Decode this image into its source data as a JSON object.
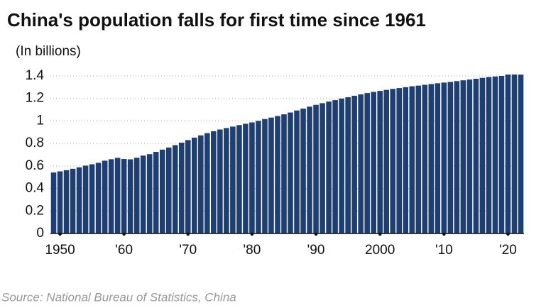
{
  "chart_data": {
    "type": "bar",
    "title": "China's population falls for first time since 1961",
    "subtitle": "(In billions)",
    "source": "Source: National Bureau of Statistics, China",
    "color": "#1f3e72",
    "grid": true,
    "x": [
      1949,
      1950,
      1951,
      1952,
      1953,
      1954,
      1955,
      1956,
      1957,
      1958,
      1959,
      1960,
      1961,
      1962,
      1963,
      1964,
      1965,
      1966,
      1967,
      1968,
      1969,
      1970,
      1971,
      1972,
      1973,
      1974,
      1975,
      1976,
      1977,
      1978,
      1979,
      1980,
      1981,
      1982,
      1983,
      1984,
      1985,
      1986,
      1987,
      1988,
      1989,
      1990,
      1991,
      1992,
      1993,
      1994,
      1995,
      1996,
      1997,
      1998,
      1999,
      2000,
      2001,
      2002,
      2003,
      2004,
      2005,
      2006,
      2007,
      2008,
      2009,
      2010,
      2011,
      2012,
      2013,
      2014,
      2015,
      2016,
      2017,
      2018,
      2019,
      2020,
      2021,
      2022
    ],
    "values": [
      0.542,
      0.552,
      0.563,
      0.575,
      0.588,
      0.603,
      0.615,
      0.628,
      0.647,
      0.66,
      0.672,
      0.662,
      0.659,
      0.673,
      0.692,
      0.705,
      0.725,
      0.745,
      0.764,
      0.785,
      0.807,
      0.83,
      0.852,
      0.872,
      0.892,
      0.909,
      0.924,
      0.937,
      0.95,
      0.963,
      0.975,
      0.987,
      1.001,
      1.017,
      1.03,
      1.044,
      1.059,
      1.075,
      1.093,
      1.11,
      1.127,
      1.143,
      1.158,
      1.172,
      1.185,
      1.199,
      1.211,
      1.224,
      1.236,
      1.248,
      1.258,
      1.267,
      1.276,
      1.285,
      1.292,
      1.3,
      1.308,
      1.314,
      1.321,
      1.328,
      1.335,
      1.341,
      1.347,
      1.354,
      1.361,
      1.368,
      1.375,
      1.383,
      1.39,
      1.395,
      1.4,
      1.412,
      1.413,
      1.412
    ],
    "xlim": [
      1948.5,
      2022.5
    ],
    "xticks": [
      {
        "value": 1950,
        "label": "1950"
      },
      {
        "value": 1960,
        "label": "'60"
      },
      {
        "value": 1970,
        "label": "'70"
      },
      {
        "value": 1980,
        "label": "'80"
      },
      {
        "value": 1990,
        "label": "'90"
      },
      2000,
      {
        "value": 2010,
        "label": "'10"
      },
      {
        "value": 2020,
        "label": "'20"
      }
    ],
    "ylim": [
      0,
      1.4
    ],
    "yticks": [
      0,
      0.2,
      0.4,
      0.6,
      0.8,
      1,
      1.2,
      1.4
    ]
  }
}
